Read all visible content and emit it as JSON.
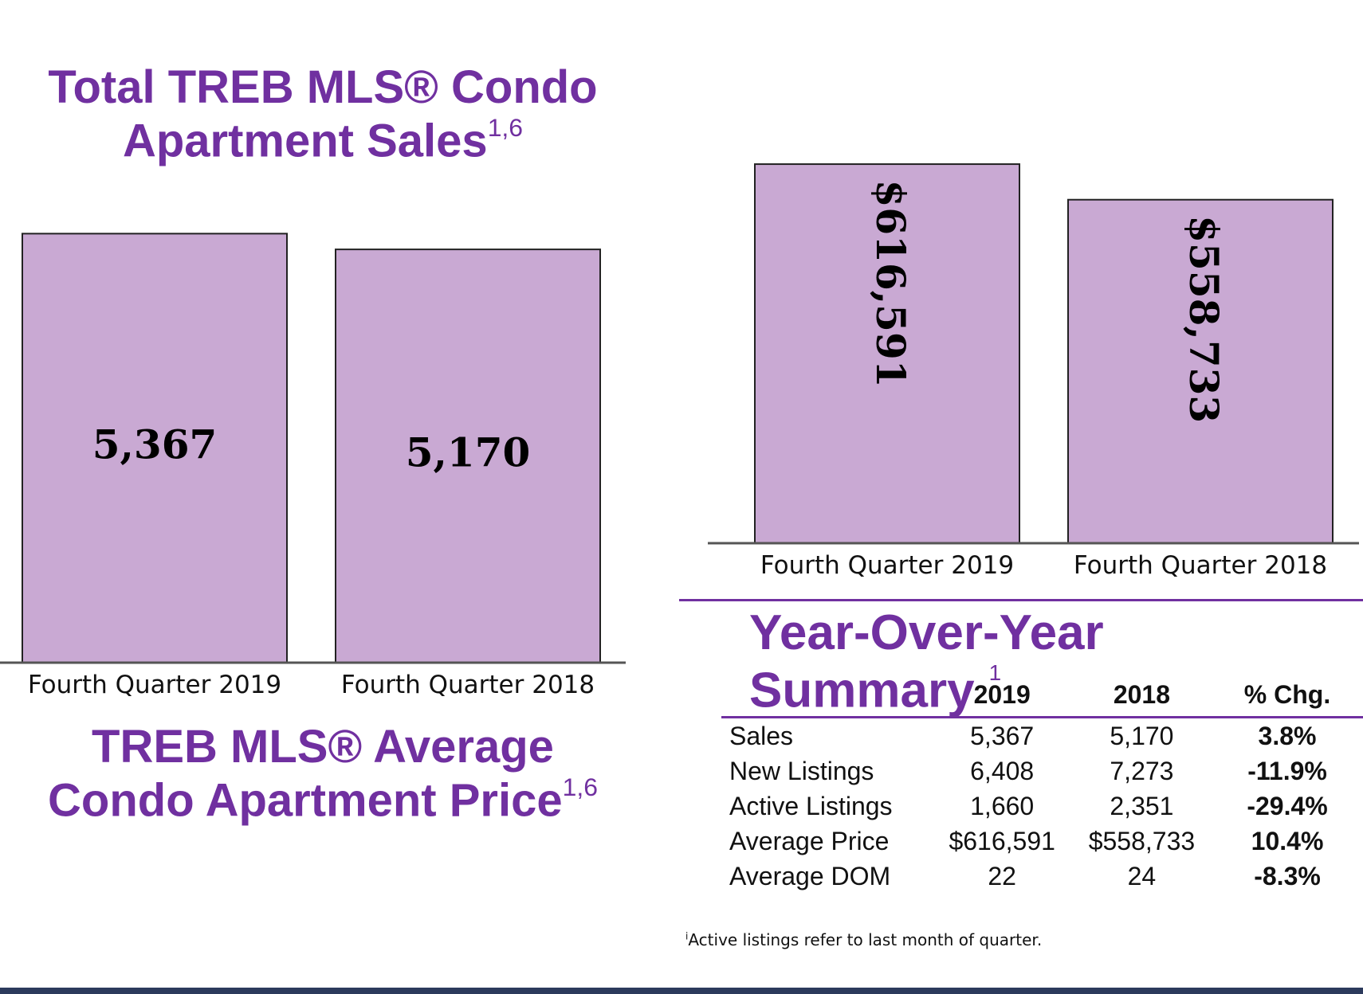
{
  "chart_data": [
    {
      "type": "bar",
      "title": "Total TREB MLS® Condo Apartment Sales",
      "title_superscript": "1,6",
      "categories": [
        "Fourth Quarter 2019",
        "Fourth Quarter 2018"
      ],
      "values": [
        5367,
        5170
      ],
      "data_labels": [
        "5,367",
        "5,170"
      ],
      "ylim": [
        0,
        5500
      ],
      "grid": false,
      "bar_color": "#c9a9d3"
    },
    {
      "type": "bar",
      "title": "TREB MLS® Average Condo Apartment Price",
      "title_superscript": "1,6",
      "categories": [
        "Fourth Quarter 2019",
        "Fourth Quarter 2018"
      ],
      "values": [
        616591,
        558733
      ],
      "data_labels": [
        "$616,591",
        "$558,733"
      ],
      "ylim": [
        0,
        640000
      ],
      "grid": false,
      "bar_color": "#c9a9d3"
    }
  ],
  "summary": {
    "title": "Year-Over-Year Summary",
    "title_superscript": "1",
    "columns": [
      "2019",
      "2018",
      "% Chg."
    ],
    "rows": [
      {
        "label": "Sales",
        "v2019": "5,367",
        "v2018": "5,170",
        "chg": "3.8%"
      },
      {
        "label": "New Listings",
        "v2019": "6,408",
        "v2018": "7,273",
        "chg": "-11.9%"
      },
      {
        "label": "Active Listings",
        "v2019": "1,660",
        "v2018": "2,351",
        "chg": "-29.4%"
      },
      {
        "label": "Average Price",
        "v2019": "$616,591",
        "v2018": "$558,733",
        "chg": "10.4%"
      },
      {
        "label": "Average DOM",
        "v2019": "22",
        "v2018": "24",
        "chg": "-8.3%"
      }
    ]
  },
  "footnote": {
    "marker": "i",
    "text": "Active listings refer to last month of quarter."
  },
  "colors": {
    "accent": "#7030a0",
    "bar": "#c9a9d3",
    "axis": "#555555"
  }
}
